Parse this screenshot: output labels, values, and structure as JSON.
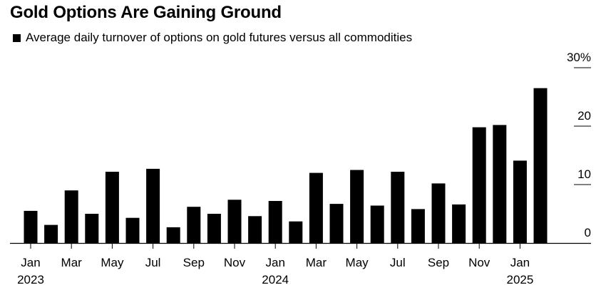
{
  "chart_data": {
    "type": "bar",
    "title": "Gold Options Are Gaining Ground",
    "legend": [
      "Average daily turnover of options on gold futures versus all commodities"
    ],
    "legend_position": "top-left",
    "categories": [
      "Jan 2023",
      "Feb 2023",
      "Mar 2023",
      "Apr 2023",
      "May 2023",
      "Jun 2023",
      "Jul 2023",
      "Aug 2023",
      "Sep 2023",
      "Oct 2023",
      "Nov 2023",
      "Dec 2023",
      "Jan 2024",
      "Feb 2024",
      "Mar 2024",
      "Apr 2024",
      "May 2024",
      "Jun 2024",
      "Jul 2024",
      "Aug 2024",
      "Sep 2024",
      "Oct 2024",
      "Nov 2024",
      "Dec 2024",
      "Jan 2025",
      "Feb 2025"
    ],
    "values": [
      5.5,
      3.1,
      9.0,
      5.0,
      12.2,
      4.3,
      12.7,
      2.7,
      6.2,
      5.0,
      7.4,
      4.6,
      7.2,
      3.7,
      12.0,
      6.7,
      12.5,
      6.4,
      12.2,
      5.8,
      10.2,
      6.6,
      19.8,
      20.2,
      14.1,
      26.5
    ],
    "ylim": [
      0,
      30
    ],
    "y_ticks": [
      {
        "value": 30,
        "label": "30%"
      },
      {
        "value": 20,
        "label": "20"
      },
      {
        "value": 10,
        "label": "10"
      },
      {
        "value": 0,
        "label": "0"
      }
    ],
    "x_ticks": [
      {
        "index": 0,
        "month": "Jan",
        "year": "2023"
      },
      {
        "index": 2,
        "month": "Mar",
        "year": ""
      },
      {
        "index": 4,
        "month": "May",
        "year": ""
      },
      {
        "index": 6,
        "month": "Jul",
        "year": ""
      },
      {
        "index": 8,
        "month": "Sep",
        "year": ""
      },
      {
        "index": 10,
        "month": "Nov",
        "year": ""
      },
      {
        "index": 12,
        "month": "Jan",
        "year": "2024"
      },
      {
        "index": 14,
        "month": "Mar",
        "year": ""
      },
      {
        "index": 16,
        "month": "May",
        "year": ""
      },
      {
        "index": 18,
        "month": "Jul",
        "year": ""
      },
      {
        "index": 20,
        "month": "Sep",
        "year": ""
      },
      {
        "index": 22,
        "month": "Nov",
        "year": ""
      },
      {
        "index": 24,
        "month": "Jan",
        "year": "2025"
      }
    ],
    "xlabel": "",
    "ylabel": "",
    "bar_color": "#000000",
    "grid": false
  }
}
